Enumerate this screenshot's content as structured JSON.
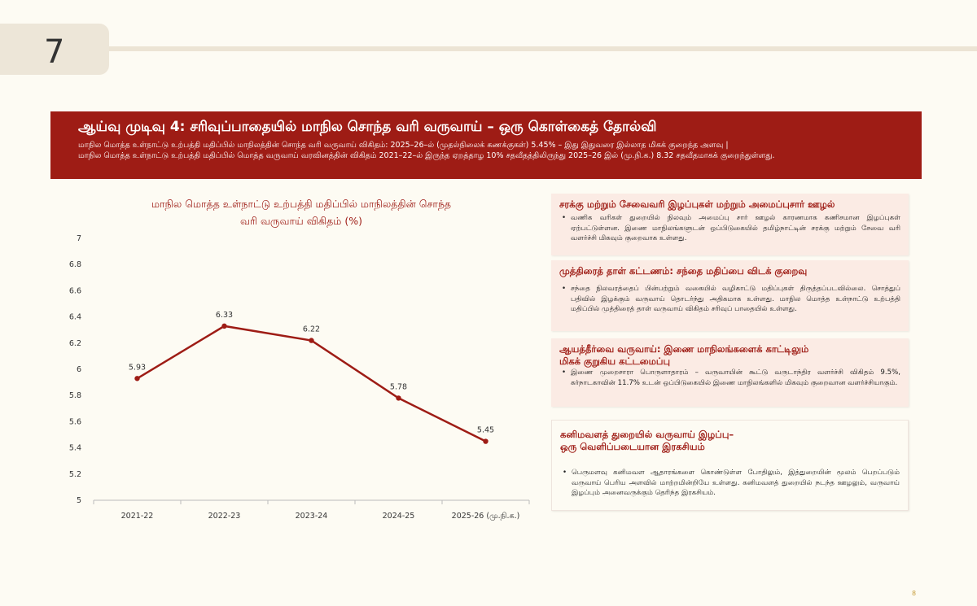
{
  "slide_number": "7",
  "banner": {
    "title": "ஆய்வு முடிவு 4: சரிவுப்பாதையில் மாநில சொந்த வரி வருவாய் – ஒரு கொள்கைத் தோல்வி",
    "subtitle_line1": "மாநில மொத்த உள்நாட்டு உற்பத்தி மதிப்பில் மாநிலத்தின் சொந்த வரி வருவாய் விகிதம்: 2025–26–ல் (முதல்நிலைக் கணக்குகள்) 5.45% – இது இதுவரை இல்லாத மிகக் குறைந்த அளவு |",
    "subtitle_line2": "மாநில மொத்த உள்நாட்டு உற்பத்தி மதிப்பில் மொத்த வருவாய் வரவினத்தின் விகிதம் 2021–22–ல் இருந்த ஏறத்தாழ 10% சதவீதத்திலிருந்து 2025–26 இல் (மு.நி.க.) 8.32 சதவீதமாகக் குறைந்துள்ளது."
  },
  "chart_data": {
    "type": "line",
    "title_line1": "மாநில மொத்த உள்நாட்டு உற்பத்தி மதிப்பில் மாநிலத்தின் சொந்த",
    "title_line2": "வரி வருவாய் விகிதம் (%)",
    "categories": [
      "2021-22",
      "2022-23",
      "2023-24",
      "2024-25",
      "2025-26 (மு.நி.க.)"
    ],
    "values": [
      5.93,
      6.33,
      6.22,
      5.78,
      5.45
    ],
    "data_labels": [
      "5.93",
      "6.33",
      "6.22",
      "5.78",
      "5.45"
    ],
    "y_ticks": [
      "5",
      "5.2",
      "5.4",
      "5.6",
      "5.8",
      "6",
      "6.2",
      "6.4",
      "6.6",
      "6.8",
      "7"
    ],
    "ylim": [
      5,
      7
    ],
    "grid": false,
    "line_color": "#9e1c15"
  },
  "cards": [
    {
      "title": "சரக்கு மற்றும் சேவைவரி இழப்புகள் மற்றும் அமைப்புசார் ஊழல்",
      "body": "வணிக வரிகள் துறையில் நிலவும் அமைப்பு சார் ஊழல் காரணமாக கணிசமான இழப்புகள் ஏற்பட்டுள்ளன. இணை மாநிலங்களுடன் ஒப்பிடுகையில் தமிழ்நாட்டின் சரக்கு மற்றும் சேவை வரி வளர்ச்சி மிகவும் குறைவாக உள்ளது."
    },
    {
      "title": "முத்திரைத் தாள் கட்டணம்: சந்தை மதிப்பை விடக் குறைவு",
      "body": "சந்தை நிலவரத்தைப் பின்பற்றும் வகையில் வழிகாட்டு மதிப்புகள் திருத்தப்படவில்லை. சொத்துப் பதிவில் இழக்கும் வருவாய் தொடர்ந்து அதிகமாக உள்ளது. மாநில மொத்த உள்நாட்டு உற்பத்தி மதிப்பில் முத்திரைத் தாள் வருவாய் விகிதம் சரிவுப் பாதையில் உள்ளது."
    },
    {
      "title_line1": "ஆயத்தீர்வை வருவாய்: இணை மாநிலங்களைக் காட்டிலும்",
      "title_line2": "மிகக் குறுகிய கட்டமைப்பு",
      "body": "இணை முறைசாரா பொருளாதாரம் – வருவாயின் கூட்டு வருடாந்திர வளர்ச்சி விகிதம் 9.5%, கர்நாடகாவின் 11.7% உடன் ஒப்பிடுகையில் இணை மாநிலங்களில் மிகவும் குறைவான வளர்ச்சியாகும்."
    },
    {
      "title_line1": "கனிமவளத் துறையில் வருவாய் இழப்பு–",
      "title_line2": "ஒரு வெளிப்படையான இரகசியம்",
      "body": "பெருமளவு கனிமவள ஆதாரங்களை கொண்டுள்ள போதிலும், இத்துறையின் மூலம் பெறப்படும் வருவாய் பெரிய அளவில் மாற்றமின்றியே உள்ளது. கனிமவளத் துறையில் நடந்த ஊழலும், வருவாய் இழப்பும் அனைவருக்கும் தெரிந்த இரகசியம்."
    }
  ],
  "footer_page": "8"
}
